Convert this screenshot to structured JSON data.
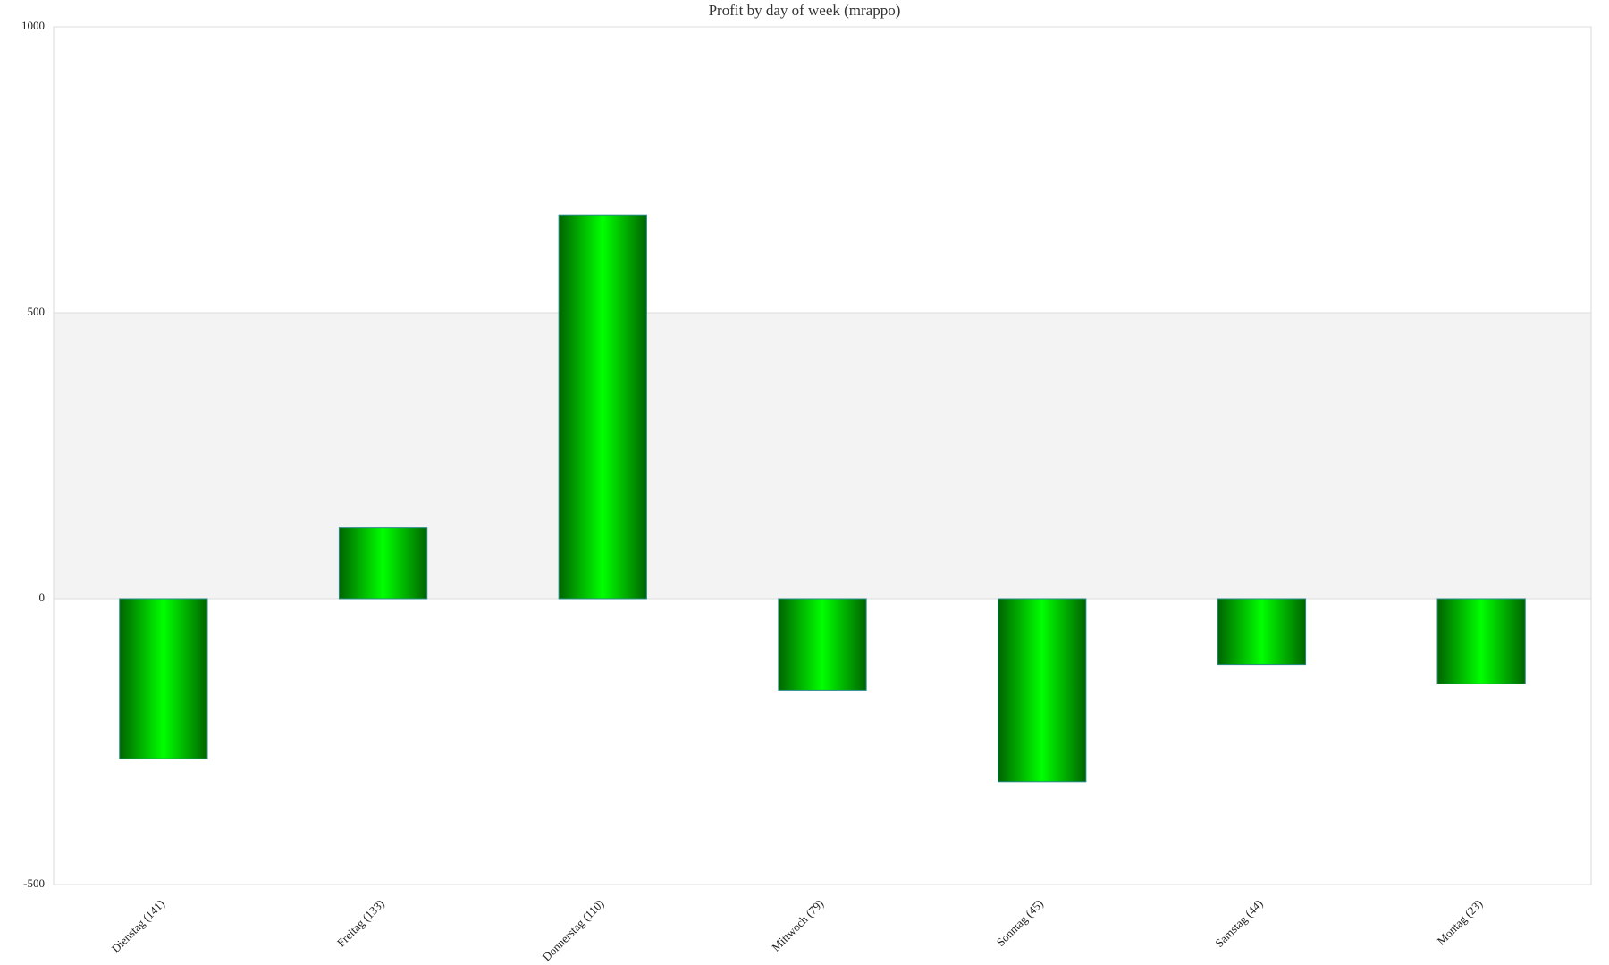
{
  "chart_data": {
    "type": "bar",
    "title": "Profit by day of week  (mrappo)",
    "categories": [
      "Dienstag (141)",
      "Freitag (133)",
      "Donnerstag (110)",
      "Mittwoch (79)",
      "Sonntag (45)",
      "Samstag (44)",
      "Montag (23)"
    ],
    "values": [
      -280,
      124,
      670,
      -160,
      -320,
      -115,
      -149
    ],
    "color": "#00ff00",
    "edge_color": "#006400",
    "ylim": [
      -500,
      1000
    ],
    "yticks": [
      -500,
      0,
      500,
      1000
    ],
    "grid": true
  }
}
